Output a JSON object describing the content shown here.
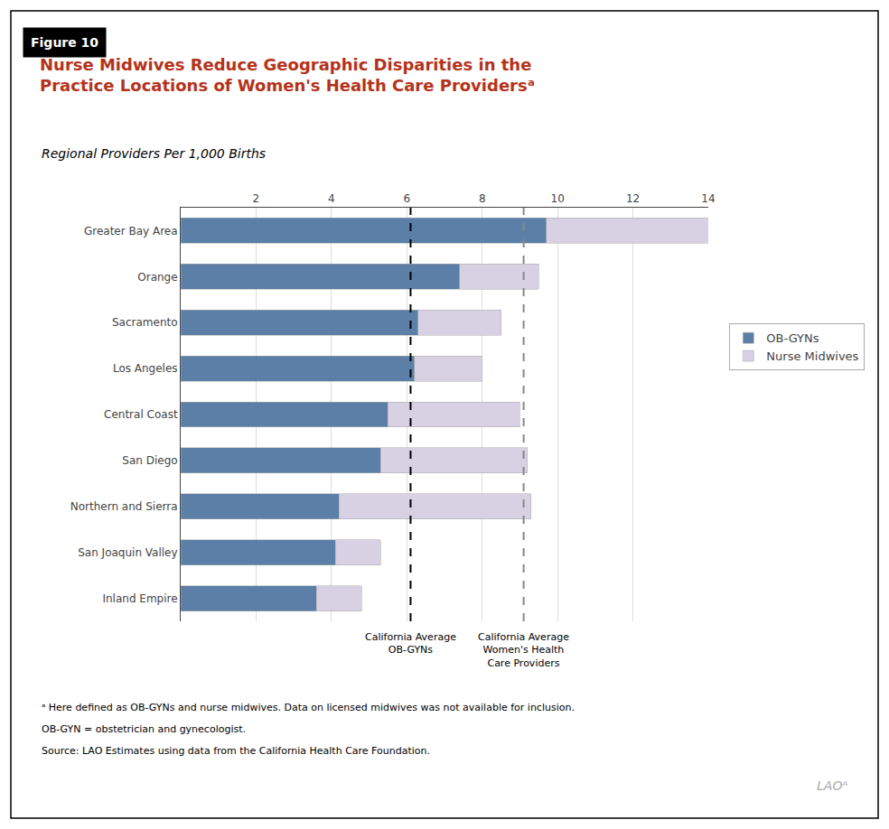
{
  "chart_data": {
    "type": "bar",
    "orientation": "horizontal",
    "stacked": true,
    "figure_label": "Figure 10",
    "title": "Nurse Midwives Reduce Geographic Disparities in the\nPractice Locations of Women's Health Care Providersᵃ",
    "title_color": "#b5321a",
    "subtitle": "Regional Providers Per 1,000 Births",
    "categories": [
      "Greater Bay Area",
      "Orange",
      "Sacramento",
      "Los Angeles",
      "Central Coast",
      "San Diego",
      "Northern and Sierra",
      "San Joaquin Valley",
      "Inland Empire"
    ],
    "series": [
      {
        "name": "OB-GYNs",
        "color": "#5b7fa6",
        "values": [
          9.7,
          7.4,
          6.3,
          6.2,
          5.5,
          5.3,
          4.2,
          4.1,
          3.6
        ]
      },
      {
        "name": "Nurse Midwives",
        "color": "#d8d0e3",
        "values": [
          4.3,
          2.1,
          2.2,
          1.8,
          3.5,
          3.9,
          5.1,
          1.2,
          1.2
        ]
      }
    ],
    "xlim": [
      0,
      14
    ],
    "xticks": [
      2,
      4,
      6,
      8,
      10,
      12,
      14
    ],
    "grid": true,
    "legend": "right",
    "annotations": [
      {
        "x": 6.1,
        "text": "California Average\nOB-GYNs",
        "color": "#000000",
        "line_style": "dashed"
      },
      {
        "x": 9.1,
        "text": "California Average\nWomen's Health\nCare Providers",
        "color": "#888888",
        "line_style": "dashed"
      }
    ],
    "notes": [
      "ᵃ Here defined as OB-GYNs and nurse midwives. Data on licensed midwives was not available for inclusion.",
      "OB-GYN = obstetrician and gynecologist.",
      "Source: LAO Estimates using data from the California Health Care Foundation."
    ],
    "logo": "LAOᴬ"
  }
}
